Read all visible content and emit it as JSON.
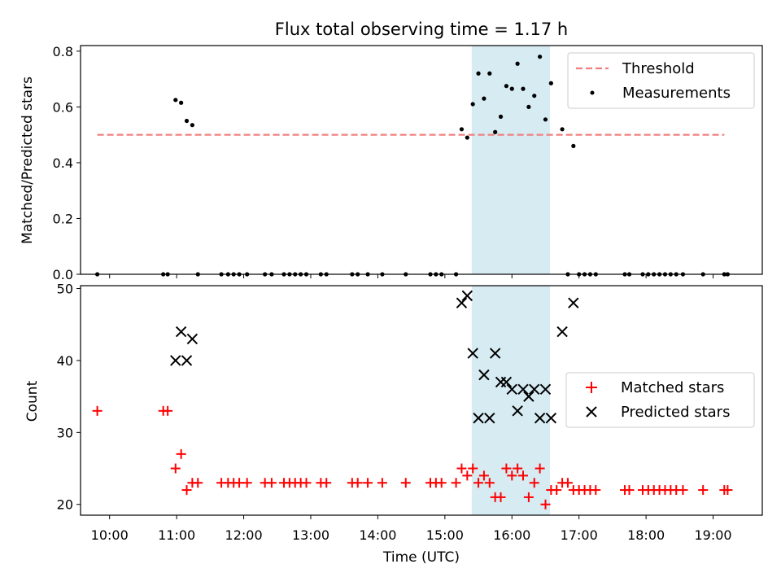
{
  "colors": {
    "threshold": "#f08080",
    "measurement": "#000000",
    "matched": "#ff0000",
    "predicted": "#000000",
    "highlight": "#add8e6"
  },
  "chart_data": [
    {
      "type": "scatter",
      "title": "Flux total observing time = 1.17 h",
      "xlabel": "",
      "ylabel": "Matched/Predicted stars",
      "xlim": [
        "09:34",
        "19:44"
      ],
      "ylim": [
        0,
        0.82
      ],
      "yticks": [
        "0.0",
        "0.2",
        "0.4",
        "0.6",
        "0.8"
      ],
      "highlight_span": [
        "15:24",
        "16:34"
      ],
      "legend_position": "top-right",
      "series": [
        {
          "name": "Threshold",
          "style": "dashed-line",
          "points": [
            [
              "09:49",
              0.5
            ],
            [
              "19:10",
              0.5
            ]
          ]
        },
        {
          "name": "Measurements",
          "style": "dot",
          "points": [
            [
              "09:49",
              0
            ],
            [
              "10:48",
              0
            ],
            [
              "10:52",
              0
            ],
            [
              "10:59",
              0.625
            ],
            [
              "11:04",
              0.615
            ],
            [
              "11:09",
              0.55
            ],
            [
              "11:14",
              0.535
            ],
            [
              "11:19",
              0
            ],
            [
              "11:40",
              0
            ],
            [
              "11:46",
              0
            ],
            [
              "11:51",
              0
            ],
            [
              "11:56",
              0
            ],
            [
              "12:03",
              0
            ],
            [
              "12:19",
              0
            ],
            [
              "12:25",
              0
            ],
            [
              "12:36",
              0
            ],
            [
              "12:41",
              0
            ],
            [
              "12:46",
              0
            ],
            [
              "12:51",
              0
            ],
            [
              "12:56",
              0
            ],
            [
              "13:09",
              0
            ],
            [
              "13:14",
              0
            ],
            [
              "13:37",
              0
            ],
            [
              "13:42",
              0
            ],
            [
              "13:51",
              0
            ],
            [
              "14:04",
              0
            ],
            [
              "14:25",
              0
            ],
            [
              "14:47",
              0
            ],
            [
              "14:52",
              0
            ],
            [
              "14:57",
              0
            ],
            [
              "15:10",
              0
            ],
            [
              "15:15",
              0.52
            ],
            [
              "15:20",
              0.49
            ],
            [
              "15:25",
              0.61
            ],
            [
              "15:30",
              0.72
            ],
            [
              "15:35",
              0.63
            ],
            [
              "15:40",
              0.72
            ],
            [
              "15:45",
              0.51
            ],
            [
              "15:50",
              0.565
            ],
            [
              "15:55",
              0.675
            ],
            [
              "16:00",
              0.665
            ],
            [
              "16:05",
              0.755
            ],
            [
              "16:10",
              0.665
            ],
            [
              "16:15",
              0.6
            ],
            [
              "16:20",
              0.64
            ],
            [
              "16:25",
              0.78
            ],
            [
              "16:30",
              0.555
            ],
            [
              "16:35",
              0.685
            ],
            [
              "16:45",
              0.52
            ],
            [
              "16:55",
              0.46
            ],
            [
              "16:50",
              0
            ],
            [
              "17:00",
              0
            ],
            [
              "17:05",
              0
            ],
            [
              "17:10",
              0
            ],
            [
              "17:15",
              0
            ],
            [
              "17:41",
              0
            ],
            [
              "17:45",
              0
            ],
            [
              "17:57",
              0
            ],
            [
              "18:02",
              0
            ],
            [
              "18:07",
              0
            ],
            [
              "18:12",
              0
            ],
            [
              "18:17",
              0
            ],
            [
              "18:22",
              0
            ],
            [
              "18:27",
              0
            ],
            [
              "18:33",
              0
            ],
            [
              "18:51",
              0
            ],
            [
              "19:10",
              0
            ],
            [
              "19:13",
              0
            ]
          ]
        }
      ]
    },
    {
      "type": "scatter",
      "title": "",
      "xlabel": "Time (UTC)",
      "ylabel": "Count",
      "xlim": [
        "09:34",
        "19:44"
      ],
      "ylim": [
        18.5,
        50.4
      ],
      "yticks": [
        "20",
        "30",
        "40",
        "50"
      ],
      "xticks": [
        "10:00",
        "11:00",
        "12:00",
        "13:00",
        "14:00",
        "15:00",
        "16:00",
        "17:00",
        "18:00",
        "19:00"
      ],
      "highlight_span": [
        "15:24",
        "16:34"
      ],
      "legend_position": "center-right",
      "series": [
        {
          "name": "Matched stars",
          "style": "plus",
          "points": [
            [
              "09:49",
              33
            ],
            [
              "10:48",
              33
            ],
            [
              "10:52",
              33
            ],
            [
              "10:59",
              25
            ],
            [
              "11:04",
              27
            ],
            [
              "11:09",
              22
            ],
            [
              "11:14",
              23
            ],
            [
              "11:19",
              23
            ],
            [
              "11:40",
              23
            ],
            [
              "11:46",
              23
            ],
            [
              "11:51",
              23
            ],
            [
              "11:56",
              23
            ],
            [
              "12:03",
              23
            ],
            [
              "12:19",
              23
            ],
            [
              "12:25",
              23
            ],
            [
              "12:36",
              23
            ],
            [
              "12:41",
              23
            ],
            [
              "12:46",
              23
            ],
            [
              "12:51",
              23
            ],
            [
              "12:56",
              23
            ],
            [
              "13:09",
              23
            ],
            [
              "13:14",
              23
            ],
            [
              "13:37",
              23
            ],
            [
              "13:42",
              23
            ],
            [
              "13:51",
              23
            ],
            [
              "14:04",
              23
            ],
            [
              "14:25",
              23
            ],
            [
              "14:47",
              23
            ],
            [
              "14:52",
              23
            ],
            [
              "14:57",
              23
            ],
            [
              "15:10",
              23
            ],
            [
              "15:15",
              25
            ],
            [
              "15:20",
              24
            ],
            [
              "15:25",
              25
            ],
            [
              "15:30",
              23
            ],
            [
              "15:35",
              24
            ],
            [
              "15:40",
              23
            ],
            [
              "15:45",
              21
            ],
            [
              "15:50",
              21
            ],
            [
              "15:55",
              25
            ],
            [
              "16:00",
              24
            ],
            [
              "16:05",
              25
            ],
            [
              "16:10",
              24
            ],
            [
              "16:15",
              21
            ],
            [
              "16:20",
              23
            ],
            [
              "16:25",
              25
            ],
            [
              "16:30",
              20
            ],
            [
              "16:35",
              22
            ],
            [
              "16:40",
              22
            ],
            [
              "16:45",
              23
            ],
            [
              "16:50",
              23
            ],
            [
              "16:55",
              22
            ],
            [
              "17:00",
              22
            ],
            [
              "17:05",
              22
            ],
            [
              "17:10",
              22
            ],
            [
              "17:15",
              22
            ],
            [
              "17:41",
              22
            ],
            [
              "17:45",
              22
            ],
            [
              "17:57",
              22
            ],
            [
              "18:02",
              22
            ],
            [
              "18:07",
              22
            ],
            [
              "18:12",
              22
            ],
            [
              "18:17",
              22
            ],
            [
              "18:22",
              22
            ],
            [
              "18:27",
              22
            ],
            [
              "18:33",
              22
            ],
            [
              "18:51",
              22
            ],
            [
              "19:10",
              22
            ],
            [
              "19:13",
              22
            ]
          ]
        },
        {
          "name": "Predicted stars",
          "style": "x",
          "points": [
            [
              "10:59",
              40
            ],
            [
              "11:04",
              44
            ],
            [
              "11:09",
              40
            ],
            [
              "11:14",
              43
            ],
            [
              "15:15",
              48
            ],
            [
              "15:20",
              49
            ],
            [
              "15:25",
              41
            ],
            [
              "15:30",
              32
            ],
            [
              "15:35",
              38
            ],
            [
              "15:40",
              32
            ],
            [
              "15:45",
              41
            ],
            [
              "15:50",
              37
            ],
            [
              "15:55",
              37
            ],
            [
              "16:00",
              36
            ],
            [
              "16:05",
              33
            ],
            [
              "16:10",
              36
            ],
            [
              "16:15",
              35
            ],
            [
              "16:20",
              36
            ],
            [
              "16:25",
              32
            ],
            [
              "16:30",
              36
            ],
            [
              "16:35",
              32
            ],
            [
              "16:45",
              44
            ],
            [
              "16:55",
              48
            ]
          ]
        }
      ]
    }
  ]
}
